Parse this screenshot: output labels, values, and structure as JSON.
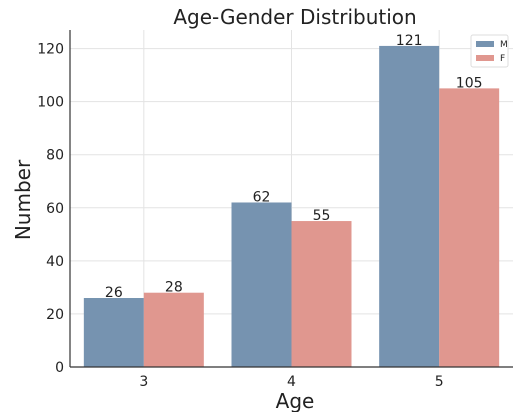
{
  "chart_data": {
    "type": "bar",
    "title": "Age-Gender Distribution",
    "xlabel": "Age",
    "ylabel": "Number",
    "categories": [
      "3",
      "4",
      "5"
    ],
    "series": [
      {
        "name": "M",
        "values": [
          26,
          62,
          121
        ],
        "color": "#7693b0"
      },
      {
        "name": "F",
        "values": [
          28,
          55,
          105
        ],
        "color": "#e0978f"
      }
    ],
    "ylim": [
      0,
      127
    ],
    "yticks": [
      0,
      20,
      40,
      60,
      80,
      100,
      120
    ],
    "grid": true,
    "legend": "top-right"
  }
}
